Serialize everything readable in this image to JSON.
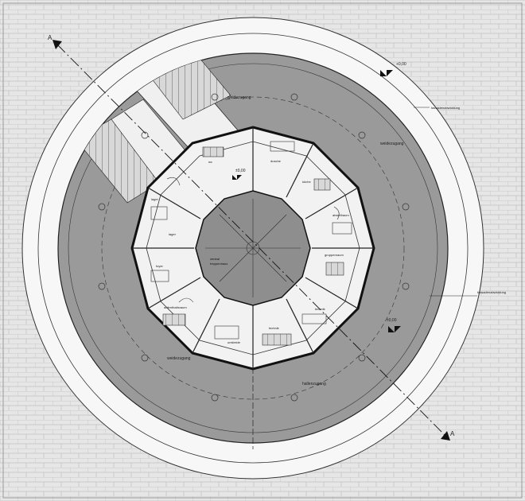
{
  "plan": {
    "colors": {
      "paving": "#e6e6e6",
      "paving_lines": "#c2c2c2",
      "outer_ring": "#f7f7f7",
      "terrace": "#9a9a9a",
      "interior": "#f2f2f2",
      "core": "#8e8e8e",
      "lines": "#222222"
    },
    "elevation_marks": [
      {
        "text": "+0,00"
      },
      {
        "text": "±0,00"
      },
      {
        "text": "±0,00"
      }
    ],
    "terrace_labels": [
      {
        "text": "weidezugang"
      },
      {
        "text": "weidezugang"
      },
      {
        "text": "weidezugang"
      },
      {
        "text": "hallenzugang"
      }
    ],
    "callouts": [
      {
        "text": "fassadenabwicklung"
      },
      {
        "text": "fassadenabwicklung"
      }
    ],
    "room_labels": [
      {
        "text": "lager"
      },
      {
        "text": "wc"
      },
      {
        "text": "dusche"
      },
      {
        "text": "küche"
      },
      {
        "text": "abstellraum"
      },
      {
        "text": "gruppenraum"
      },
      {
        "text": "technik"
      },
      {
        "text": "technik"
      },
      {
        "text": "umkleide"
      },
      {
        "text": "aufenthaltsraum"
      },
      {
        "text": "foyer"
      },
      {
        "text": "lager"
      }
    ],
    "core_label": {
      "line1": "zentral",
      "line2": "treppenhaus"
    },
    "section_marks": [
      {
        "text": "A"
      },
      {
        "text": "A"
      }
    ]
  }
}
